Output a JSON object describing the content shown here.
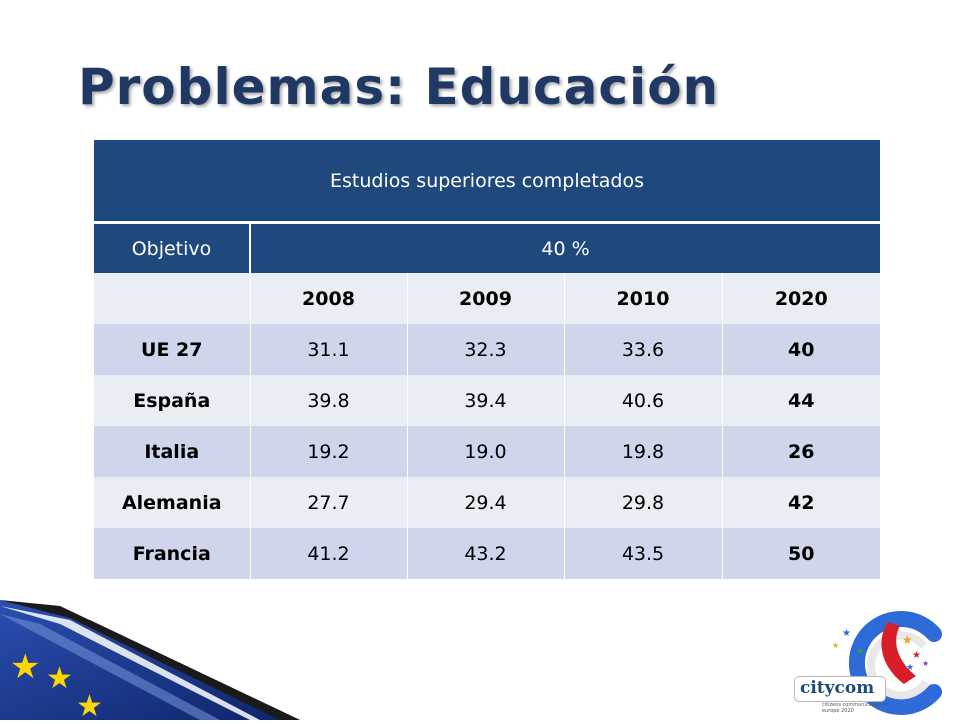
{
  "title": "Problemas: Educación",
  "table": {
    "caption": "Estudios superiores completados",
    "target_label": "Objetivo",
    "target_value": "40 %",
    "years": [
      "2008",
      "2009",
      "2010",
      "2020"
    ],
    "rows": [
      {
        "country": "UE 27",
        "v2008": "31.1",
        "v2009": "32.3",
        "v2010": "33.6",
        "v2020": "40"
      },
      {
        "country": "España",
        "v2008": "39.8",
        "v2009": "39.4",
        "v2010": "40.6",
        "v2020": "44"
      },
      {
        "country": "Italia",
        "v2008": "19.2",
        "v2009": "19.0",
        "v2010": "19.8",
        "v2020": "26"
      },
      {
        "country": "Alemania",
        "v2008": "27.7",
        "v2009": "29.4",
        "v2010": "29.8",
        "v2020": "42"
      },
      {
        "country": "Francia",
        "v2008": "41.2",
        "v2009": "43.2",
        "v2010": "43.5",
        "v2020": "50"
      }
    ]
  },
  "logo": {
    "brand": "citycom",
    "tagline": "citizens communication for europe 2020"
  },
  "colors": {
    "title": "#1F3864",
    "header_fill": "#1F497D",
    "row_dark": "#CFD5EA",
    "row_light": "#E9EDF4",
    "eu_blue": "#1B3A8C",
    "eu_star": "#FFD700"
  },
  "icons": [
    "eu-flag-stars-icon",
    "citycom-logo-icon"
  ]
}
